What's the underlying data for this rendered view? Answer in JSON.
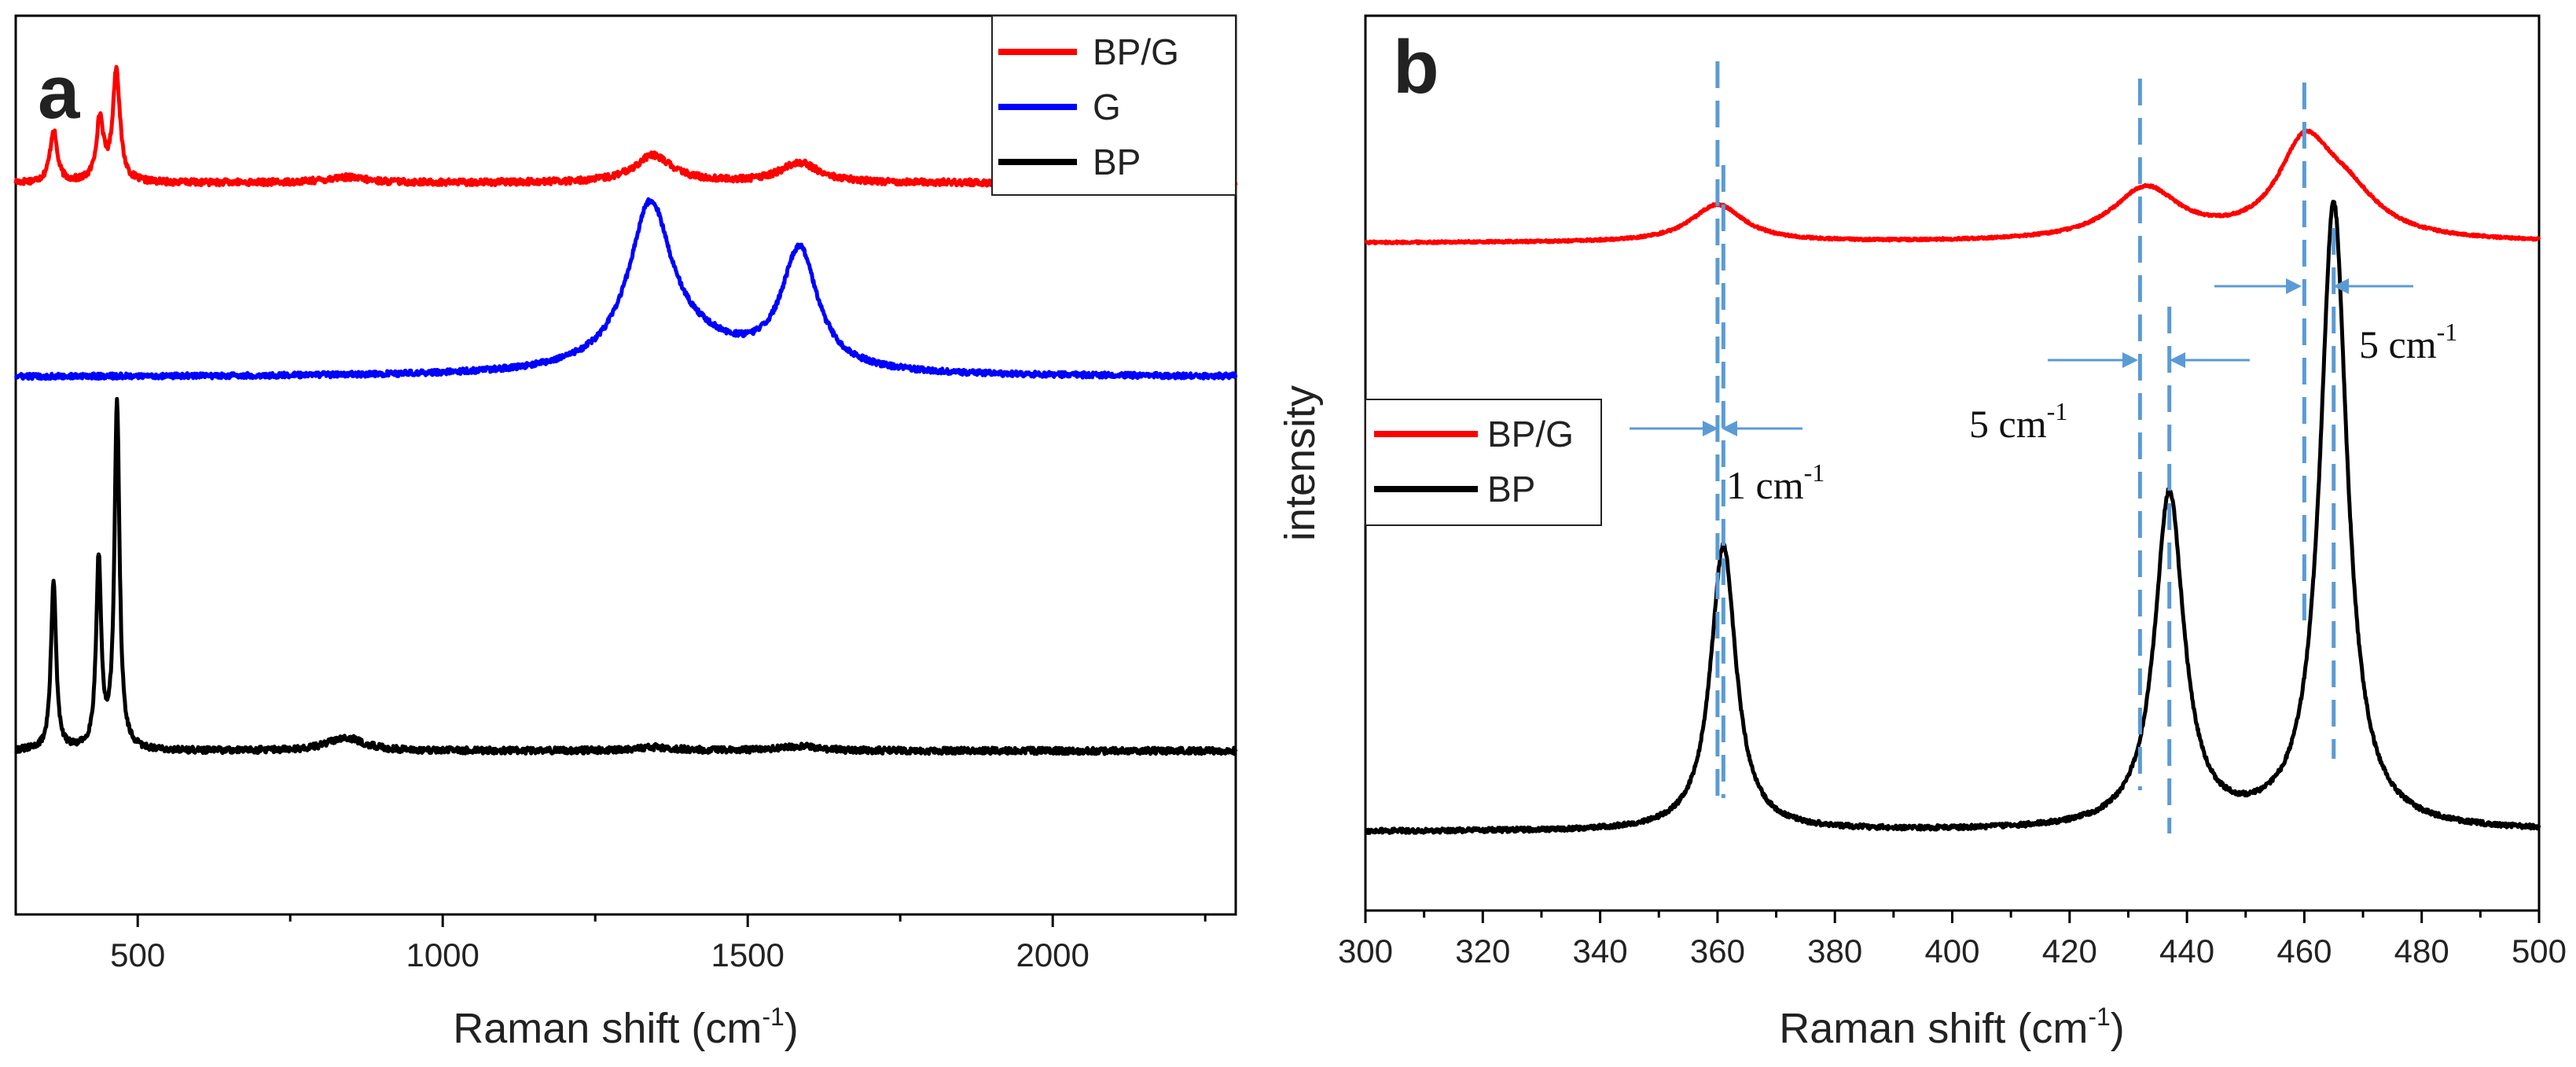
{
  "chart_data": [
    {
      "panel_label": "a",
      "type": "line",
      "title": "",
      "xlabel": "Raman shift (cm",
      "xlabel_sup": "-1",
      "xlabel_close": ")",
      "ylabel": "",
      "xlim": [
        300,
        2300
      ],
      "ylim": [
        0,
        100
      ],
      "xticks": [
        500,
        1000,
        1500,
        2000
      ],
      "xtick_labels": [
        "500",
        "1000",
        "1500",
        "2000"
      ],
      "minor_xtick_step": 250,
      "legend_position": "top-right",
      "legend": [
        "BP/G",
        "G",
        "BP"
      ],
      "series": [
        {
          "name": "BP/G",
          "color": "#ff0000",
          "baseline": 81.4,
          "noise": 0.35,
          "peaks": [
            [
              362,
              5.8,
              7
            ],
            [
              438,
              6.9,
              7
            ],
            [
              465,
              12.4,
              7
            ],
            [
              840,
              0.6,
              40
            ],
            [
              1345,
              3.0,
              38
            ],
            [
              1585,
              2.2,
              38
            ]
          ]
        },
        {
          "name": "G",
          "color": "#0000ff",
          "baseline": 59.8,
          "noise": 0.3,
          "peaks": [
            [
              1340,
              17.0,
              42
            ],
            [
              1585,
              13.2,
              36
            ],
            [
              1400,
              3.0,
              120
            ]
          ]
        },
        {
          "name": "BP",
          "color": "#000000",
          "baseline": 18.2,
          "noise": 0.35,
          "peaks": [
            [
              362,
              19.0,
              5
            ],
            [
              436,
              21.0,
              5
            ],
            [
              466,
              38.5,
              5
            ],
            [
              840,
              1.5,
              35
            ],
            [
              1345,
              0.4,
              40
            ],
            [
              1585,
              0.5,
              40
            ]
          ]
        }
      ]
    },
    {
      "panel_label": "b",
      "type": "line",
      "title": "",
      "xlabel": "Raman shift (cm",
      "xlabel_sup": "-1",
      "xlabel_close": ")",
      "ylabel": "intensity",
      "xlim": [
        300,
        500
      ],
      "ylim": [
        0,
        100
      ],
      "xticks": [
        300,
        320,
        340,
        360,
        380,
        400,
        420,
        440,
        460,
        480,
        500
      ],
      "xtick_labels": [
        "300",
        "320",
        "340",
        "360",
        "380",
        "400",
        "420",
        "440",
        "460",
        "480",
        "500"
      ],
      "minor_xtick_step": 10,
      "legend_position": "middle-left",
      "legend": [
        "BP/G",
        "BP"
      ],
      "series": [
        {
          "name": "BP/G",
          "color": "#ff0000",
          "baseline": 74.6,
          "noise": 0.12,
          "peaks": [
            [
              360,
              4.2,
              5.5
            ],
            [
              433,
              5.8,
              7
            ],
            [
              460,
              9.8,
              5.5
            ],
            [
              467,
              4.5,
              7
            ]
          ]
        },
        {
          "name": "BP",
          "color": "#000000",
          "baseline": 8.8,
          "noise": 0.25,
          "peaks": [
            [
              361,
              32.0,
              2.6
            ],
            [
              437,
              37.5,
              3.0
            ],
            [
              465,
              70.0,
              2.8
            ]
          ]
        }
      ],
      "reference_lines": [
        360,
        361,
        432,
        437,
        460,
        465
      ],
      "reference_line_color": "#5b9bd5",
      "shift_annotations": [
        {
          "text": "1 cm",
          "sup": "-1"
        },
        {
          "text": "5 cm",
          "sup": "-1"
        },
        {
          "text": "5 cm",
          "sup": "-1"
        }
      ]
    }
  ]
}
